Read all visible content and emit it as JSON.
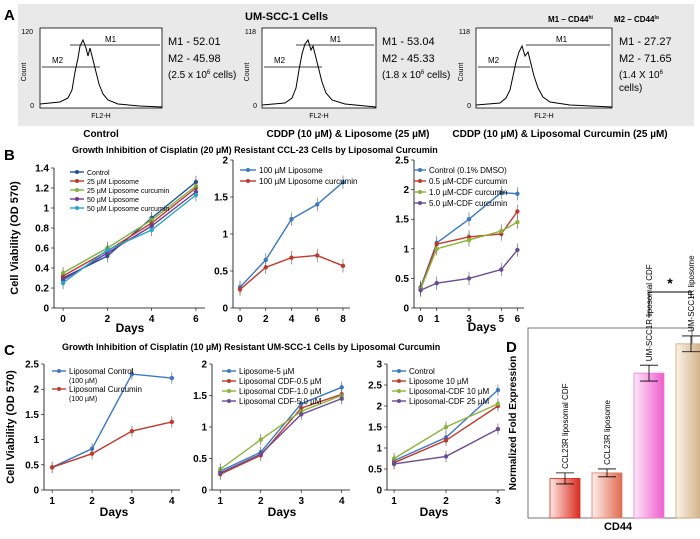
{
  "panel_labels": {
    "A": "A",
    "B": "B",
    "C": "C",
    "D": "D"
  },
  "panel_a": {
    "title": "UM-SCC-1  Cells",
    "legend_left": "M1 – CD44",
    "legend_left_sup": "hi",
    "legend_right": "M2 – CD44",
    "legend_right_sup": "lo",
    "ylabel": "Count",
    "xlabel": "FL2-H",
    "histograms": [
      {
        "ymax": "120",
        "m1": "M1 - 52.01",
        "m2": "M2 - 45.98",
        "cells": "(2.5 x 10",
        "cells_exp": "6",
        "cells_tail": " cells)",
        "caption": "Control"
      },
      {
        "ymax": "118",
        "m1": "M1 - 53.04",
        "m2": "M2 - 45.33",
        "cells": "(1.8 x 10",
        "cells_exp": "6",
        "cells_tail": " cells)",
        "caption": "CDDP (10 µM) & Liposome (25 µM)"
      },
      {
        "ymax": "118",
        "m1": "M1 - 27.27",
        "m2": "M2 - 71.65",
        "cells": "(1.4  X 10",
        "cells_exp": "6",
        "cells_tail": "cells)",
        "caption": "CDDP (10 µM) & Liposomal Curcumin (25 µM)"
      }
    ],
    "marker_labels": {
      "m1": "M1",
      "m2": "M2"
    }
  },
  "chart_data": [
    {
      "id": "B1",
      "type": "line",
      "title": "Growth Inhibition of Cisplatin (20 µM) Resistant CCL-23 Cells by Liposomal Curcumin",
      "xlabel": "Days",
      "ylabel": "Cell Viability (OD 570)",
      "x": [
        0,
        2,
        4,
        6
      ],
      "xticks": [
        "0",
        "2",
        "4",
        "6"
      ],
      "ylim": [
        0,
        1.4
      ],
      "yticks": [
        "0",
        "0.2",
        "0.4",
        "0.6",
        "0.8",
        "1",
        "1.2",
        "1.4"
      ],
      "series": [
        {
          "name": "Control",
          "color": "#1f4e9c",
          "values": [
            0.3,
            0.52,
            0.9,
            1.26
          ]
        },
        {
          "name": "25 µM Liposome",
          "color": "#c0392b",
          "values": [
            0.32,
            0.57,
            0.85,
            1.2
          ]
        },
        {
          "name": "25 µM Liposome curcumin",
          "color": "#7cb342",
          "values": [
            0.35,
            0.6,
            0.88,
            1.22
          ]
        },
        {
          "name": "50 µM Liposome",
          "color": "#6a3d9a",
          "values": [
            0.28,
            0.55,
            0.82,
            1.16
          ]
        },
        {
          "name": "50 µM Liposome curcumin",
          "color": "#26a6c9",
          "values": [
            0.25,
            0.58,
            0.78,
            1.13
          ]
        }
      ]
    },
    {
      "id": "B2",
      "type": "line",
      "xlabel": "",
      "ylabel": "",
      "x": [
        0,
        2,
        4,
        6,
        8
      ],
      "xticks": [
        "0",
        "2",
        "4",
        "6",
        "8"
      ],
      "ylim": [
        0,
        2
      ],
      "yticks": [
        "0",
        "0.5",
        "1",
        "1.5",
        "2"
      ],
      "series": [
        {
          "name": "100 µM Liposome",
          "color": "#3c78c3",
          "values": [
            0.28,
            0.65,
            1.2,
            1.4,
            1.7
          ]
        },
        {
          "name": "100 µM Liposome curcumin",
          "color": "#c0392b",
          "values": [
            0.25,
            0.55,
            0.68,
            0.71,
            0.57
          ]
        }
      ]
    },
    {
      "id": "B3",
      "type": "line",
      "xlabel": "Days",
      "ylabel": "",
      "x": [
        0,
        1,
        3,
        5,
        6
      ],
      "xticks": [
        "0",
        "1",
        "3",
        "5",
        "6"
      ],
      "ylim": [
        0,
        2.5
      ],
      "yticks": [
        "0",
        "0.5",
        "1",
        "1.5",
        "2",
        "2.5"
      ],
      "series": [
        {
          "name": "Control (0.1% DMSO)",
          "color": "#3c78c3",
          "values": [
            0.35,
            1.1,
            1.5,
            1.95,
            1.93
          ]
        },
        {
          "name": "0.5 µM-CDF curcumin",
          "color": "#c0392b",
          "values": [
            0.33,
            1.08,
            1.2,
            1.25,
            1.63
          ]
        },
        {
          "name": "1.0 µM-CDF curcumin",
          "color": "#8bb33a",
          "values": [
            0.32,
            1.0,
            1.15,
            1.3,
            1.45
          ]
        },
        {
          "name": "5.0 µM-CDF curcumin",
          "color": "#6a4c93",
          "values": [
            0.3,
            0.42,
            0.5,
            0.65,
            0.98
          ]
        }
      ]
    },
    {
      "id": "C1",
      "type": "line",
      "title": "Growth Inhibition of Cisplatin (10 µM) Resistant UM-SCC-1 Cells by Liposomal Curcumin",
      "xlabel": "Days",
      "ylabel": "Cell Viability (OD 570)",
      "x": [
        1,
        2,
        3,
        4
      ],
      "xticks": [
        "1",
        "2",
        "3",
        "4"
      ],
      "ylim": [
        0,
        2.5
      ],
      "yticks": [
        "0",
        "0.5",
        "1",
        "1.5",
        "2",
        "2.5"
      ],
      "series": [
        {
          "name": "Liposomal Control",
          "sub": "(100 µM)",
          "color": "#3c78c3",
          "values": [
            0.45,
            0.82,
            2.3,
            2.22
          ]
        },
        {
          "name": "Liposomal Curcumin",
          "sub": "(100 µM)",
          "color": "#c0392b",
          "values": [
            0.45,
            0.72,
            1.17,
            1.35
          ]
        }
      ]
    },
    {
      "id": "C2",
      "type": "line",
      "xlabel": "Days",
      "ylabel": "",
      "x": [
        1,
        2,
        3,
        4
      ],
      "xticks": [
        "1",
        "2",
        "3",
        "4"
      ],
      "ylim": [
        0,
        2
      ],
      "yticks": [
        "0",
        "0.5",
        "1",
        "1.5",
        "2"
      ],
      "series": [
        {
          "name": "Liposome-5 µM",
          "color": "#3c78c3",
          "values": [
            0.3,
            0.6,
            1.37,
            1.63
          ]
        },
        {
          "name": "Liposomal CDF-0.5 µM",
          "color": "#c0392b",
          "values": [
            0.25,
            0.55,
            1.3,
            1.52
          ]
        },
        {
          "name": "Liposomal CDF-1.0 µM",
          "color": "#8bb33a",
          "values": [
            0.33,
            0.8,
            1.25,
            1.5
          ]
        },
        {
          "name": "Liposomal CDF-5.0 µM",
          "color": "#6a4c93",
          "values": [
            0.27,
            0.57,
            1.2,
            1.45
          ]
        }
      ]
    },
    {
      "id": "C3",
      "type": "line",
      "xlabel": "Days",
      "ylabel": "",
      "x": [
        1,
        2,
        3
      ],
      "xticks": [
        "1",
        "2",
        "3"
      ],
      "ylim": [
        0,
        3
      ],
      "yticks": [
        "0",
        "0.5",
        "1",
        "1.5",
        "2",
        "2.5",
        "3"
      ],
      "series": [
        {
          "name": "Control",
          "color": "#3c78c3",
          "values": [
            0.7,
            1.25,
            2.38
          ]
        },
        {
          "name": "Liposome 10 µM",
          "color": "#c0392b",
          "values": [
            0.65,
            1.18,
            2.0
          ]
        },
        {
          "name": "Liposomal-CDF 10 µM",
          "color": "#8bb33a",
          "values": [
            0.75,
            1.5,
            2.05
          ]
        },
        {
          "name": "Liposomal-CDF 25 µM",
          "color": "#6a4c93",
          "values": [
            0.62,
            0.8,
            1.45
          ]
        }
      ]
    },
    {
      "id": "D",
      "type": "bar",
      "xlabel": "CD44",
      "ylabel": "Normalized Fold Expression",
      "ylim": [
        0,
        2.4
      ],
      "categories": [
        "CCL23R liposomal CDF",
        "CCL23R liposome",
        "UM-SCC1R liposomal CDF",
        "UM-SCC1R liposome"
      ],
      "values": [
        0.5,
        0.57,
        1.83,
        2.2
      ],
      "errors": [
        0.07,
        0.05,
        0.1,
        0.1
      ],
      "colors": [
        "#d92b1f",
        "#e07a5f",
        "#f07cd0",
        "#c9a574"
      ],
      "annotation": "*"
    }
  ]
}
